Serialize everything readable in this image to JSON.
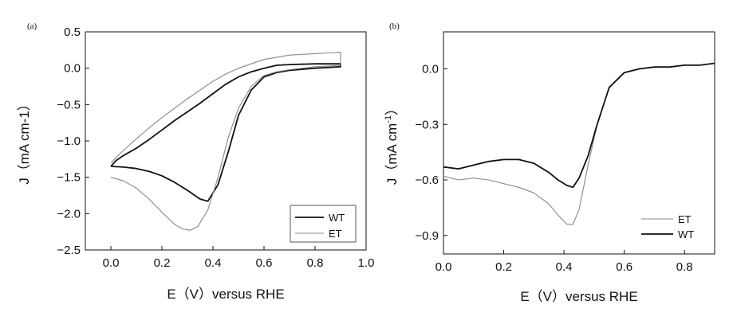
{
  "chart_data": [
    {
      "panel_label": "(a)",
      "type": "line",
      "xlabel": "E（V）versus RHE",
      "ylabel": "J（mA cm-1）",
      "xlim": [
        -0.1,
        1.0
      ],
      "ylim": [
        -2.5,
        0.5
      ],
      "xticks": [
        "0.0",
        "0.2",
        "0.4",
        "0.6",
        "0.8",
        "1.0"
      ],
      "yticks": [
        "0.5",
        "0.0",
        "-0.5",
        "-1.0",
        "-1.5",
        "-2.0",
        "-2.5"
      ],
      "legend_position": "bottom-right",
      "series": [
        {
          "name": "WT",
          "color": "#111111",
          "x": [
            0.0,
            0.05,
            0.1,
            0.15,
            0.2,
            0.25,
            0.3,
            0.35,
            0.38,
            0.42,
            0.46,
            0.5,
            0.55,
            0.6,
            0.65,
            0.7,
            0.8,
            0.9,
            0.9,
            0.85,
            0.8,
            0.7,
            0.65,
            0.6,
            0.55,
            0.5,
            0.45,
            0.4,
            0.35,
            0.3,
            0.25,
            0.2,
            0.15,
            0.1,
            0.05,
            0.02,
            0.0
          ],
          "y": [
            -1.35,
            -1.36,
            -1.38,
            -1.42,
            -1.48,
            -1.57,
            -1.68,
            -1.8,
            -1.83,
            -1.6,
            -1.15,
            -0.65,
            -0.3,
            -0.12,
            -0.06,
            -0.03,
            0.0,
            0.02,
            0.06,
            0.06,
            0.06,
            0.05,
            0.04,
            0.0,
            -0.05,
            -0.12,
            -0.22,
            -0.35,
            -0.48,
            -0.6,
            -0.72,
            -0.85,
            -0.98,
            -1.1,
            -1.2,
            -1.27,
            -1.35
          ]
        },
        {
          "name": "ET",
          "color": "#888888",
          "x": [
            0.0,
            0.05,
            0.1,
            0.15,
            0.2,
            0.25,
            0.28,
            0.31,
            0.34,
            0.38,
            0.42,
            0.46,
            0.5,
            0.55,
            0.6,
            0.65,
            0.7,
            0.8,
            0.9,
            0.9,
            0.85,
            0.8,
            0.7,
            0.6,
            0.5,
            0.45,
            0.4,
            0.35,
            0.3,
            0.25,
            0.2,
            0.15,
            0.1,
            0.05,
            0.02,
            0.0
          ],
          "y": [
            -1.5,
            -1.55,
            -1.65,
            -1.8,
            -1.98,
            -2.15,
            -2.21,
            -2.23,
            -2.18,
            -1.95,
            -1.5,
            -0.95,
            -0.55,
            -0.25,
            -0.1,
            -0.05,
            -0.02,
            0.02,
            0.04,
            0.22,
            0.21,
            0.2,
            0.18,
            0.12,
            0.0,
            -0.08,
            -0.18,
            -0.3,
            -0.42,
            -0.55,
            -0.68,
            -0.82,
            -0.97,
            -1.13,
            -1.23,
            -1.3
          ]
        }
      ]
    },
    {
      "panel_label": "(b)",
      "type": "line",
      "xlabel": "E（V）versus RHE",
      "ylabel": "J（mA cm",
      "ylabel_sup": "-1",
      "ylabel_end": "）",
      "xlim": [
        0.0,
        0.9
      ],
      "ylim": [
        -1.0,
        0.2
      ],
      "xticks": [
        "0.0",
        "0.2",
        "0.4",
        "0.6",
        "0.8"
      ],
      "yticks": [
        "0.0",
        "-0.3",
        "-0.6",
        "-0.9"
      ],
      "legend_position": "bottom-right",
      "series": [
        {
          "name": "ET",
          "color": "#888888",
          "x": [
            0.0,
            0.05,
            0.1,
            0.15,
            0.2,
            0.25,
            0.3,
            0.35,
            0.38,
            0.41,
            0.43,
            0.45,
            0.48,
            0.51,
            0.55,
            0.6,
            0.65,
            0.7,
            0.75,
            0.8,
            0.85,
            0.9
          ],
          "y": [
            -0.58,
            -0.6,
            -0.59,
            -0.6,
            -0.62,
            -0.64,
            -0.67,
            -0.73,
            -0.79,
            -0.84,
            -0.84,
            -0.76,
            -0.52,
            -0.3,
            -0.1,
            -0.02,
            0.0,
            0.01,
            0.01,
            0.02,
            0.02,
            0.03
          ]
        },
        {
          "name": "WT",
          "color": "#111111",
          "x": [
            0.0,
            0.05,
            0.1,
            0.15,
            0.2,
            0.25,
            0.3,
            0.35,
            0.38,
            0.41,
            0.43,
            0.45,
            0.48,
            0.51,
            0.55,
            0.6,
            0.65,
            0.7,
            0.75,
            0.8,
            0.85,
            0.9
          ],
          "y": [
            -0.53,
            -0.54,
            -0.52,
            -0.5,
            -0.49,
            -0.49,
            -0.51,
            -0.56,
            -0.6,
            -0.63,
            -0.64,
            -0.59,
            -0.47,
            -0.3,
            -0.1,
            -0.02,
            0.0,
            0.01,
            0.01,
            0.02,
            0.02,
            0.03
          ]
        }
      ]
    }
  ]
}
